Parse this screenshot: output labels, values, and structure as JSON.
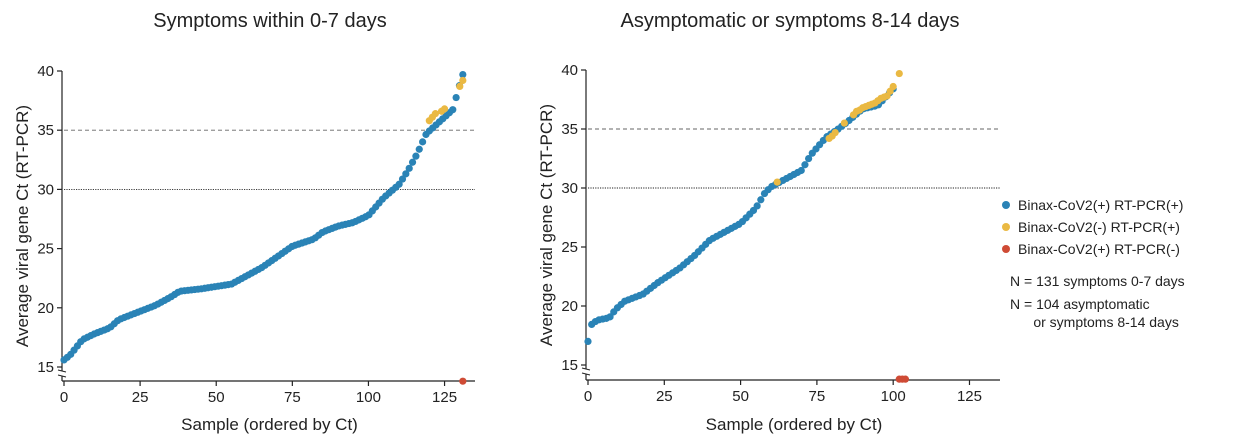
{
  "colors": {
    "pos_pos": "#2a83b6",
    "neg_pos": "#eab943",
    "pos_neg": "#cf4b35",
    "axis": "#222222",
    "ref_dashed": "#666666",
    "ref_dotted": "#222222"
  },
  "legend": {
    "items": [
      {
        "label": "Binax-CoV2(+) RT-PCR(+)",
        "color_key": "pos_pos"
      },
      {
        "label": "Binax-CoV2(-) RT-PCR(+)",
        "color_key": "neg_pos"
      },
      {
        "label": "Binax-CoV2(+) RT-PCR(-)",
        "color_key": "pos_neg"
      }
    ],
    "note1": "N = 131 symptoms 0-7 days",
    "note2": "N = 104 asymptomatic\n      or symptoms 8-14 days"
  },
  "chart_data": [
    {
      "type": "scatter",
      "title": "Symptoms within 0-7 days",
      "xlabel": "Sample (ordered by Ct)",
      "ylabel": "Average viral gene Ct (RT-PCR)",
      "xlim": [
        0,
        135
      ],
      "ylim": [
        15,
        40
      ],
      "xticks": [
        0,
        25,
        50,
        75,
        100,
        125
      ],
      "yticks": [
        15,
        20,
        25,
        30,
        35,
        40
      ],
      "reference_lines": [
        {
          "y": 35,
          "style": "dashed"
        },
        {
          "y": 30,
          "style": "dotted"
        }
      ],
      "grid": false,
      "n": 131,
      "series": [
        {
          "color_key": "pos_pos",
          "curve": [
            [
              0,
              15.6
            ],
            [
              2,
              16.0
            ],
            [
              6,
              17.3
            ],
            [
              10,
              17.8
            ],
            [
              15,
              18.3
            ],
            [
              18,
              19.0
            ],
            [
              25,
              19.7
            ],
            [
              30,
              20.2
            ],
            [
              35,
              20.9
            ],
            [
              38,
              21.4
            ],
            [
              45,
              21.6
            ],
            [
              55,
              22.0
            ],
            [
              60,
              22.7
            ],
            [
              65,
              23.4
            ],
            [
              70,
              24.3
            ],
            [
              75,
              25.2
            ],
            [
              82,
              25.8
            ],
            [
              85,
              26.4
            ],
            [
              90,
              26.9
            ],
            [
              95,
              27.2
            ],
            [
              100,
              27.8
            ],
            [
              105,
              29.3
            ],
            [
              110,
              30.4
            ],
            [
              113,
              31.6
            ],
            [
              116,
              33.0
            ],
            [
              119,
              34.7
            ],
            [
              128,
              36.8
            ],
            [
              129,
              38.0
            ],
            [
              131,
              39.7
            ]
          ],
          "x_range": [
            0,
            131
          ],
          "count": 120
        },
        {
          "color_key": "neg_pos",
          "points": [
            [
              120,
              35.8
            ],
            [
              121,
              36.1
            ],
            [
              122,
              36.4
            ],
            [
              124,
              36.6
            ],
            [
              125,
              36.8
            ],
            [
              130,
              38.7
            ],
            [
              131,
              39.2
            ]
          ]
        },
        {
          "color_key": "pos_neg",
          "points": [
            [
              131,
              13.8
            ]
          ]
        }
      ]
    },
    {
      "type": "scatter",
      "title": "Asymptomatic or symptoms 8-14 days",
      "xlabel": "Sample (ordered by Ct)",
      "ylabel": "Average viral gene Ct (RT-PCR)",
      "xlim": [
        0,
        135
      ],
      "ylim": [
        15,
        40
      ],
      "xticks": [
        0,
        25,
        50,
        75,
        100,
        125
      ],
      "yticks": [
        15,
        20,
        25,
        30,
        35,
        40
      ],
      "reference_lines": [
        {
          "y": 35,
          "style": "dashed"
        },
        {
          "y": 30,
          "style": "dotted"
        }
      ],
      "grid": false,
      "n": 104,
      "series": [
        {
          "color_key": "pos_pos",
          "curve": [
            [
              0,
              17.0
            ],
            [
              1,
              18.4
            ],
            [
              3,
              18.8
            ],
            [
              7,
              19.0
            ],
            [
              9,
              19.7
            ],
            [
              12,
              20.4
            ],
            [
              18,
              21.0
            ],
            [
              23,
              22.0
            ],
            [
              30,
              23.2
            ],
            [
              35,
              24.3
            ],
            [
              40,
              25.6
            ],
            [
              50,
              27.0
            ],
            [
              55,
              28.3
            ],
            [
              58,
              29.6
            ],
            [
              60,
              30.1
            ],
            [
              65,
              30.8
            ],
            [
              70,
              31.5
            ],
            [
              73,
              32.8
            ],
            [
              78,
              34.3
            ],
            [
              82,
              35.0
            ],
            [
              85,
              35.6
            ],
            [
              90,
              36.7
            ],
            [
              95,
              37.0
            ],
            [
              100,
              38.4
            ],
            [
              102,
              39.6
            ]
          ],
          "x_range": [
            0,
            100
          ],
          "count": 84
        },
        {
          "color_key": "neg_pos",
          "points": [
            [
              62,
              30.5
            ],
            [
              79,
              34.2
            ],
            [
              80,
              34.4
            ],
            [
              81,
              34.7
            ],
            [
              84,
              35.5
            ],
            [
              87,
              36.2
            ],
            [
              88,
              36.5
            ],
            [
              89,
              36.6
            ],
            [
              90,
              36.8
            ],
            [
              91,
              36.9
            ],
            [
              92,
              37.0
            ],
            [
              93,
              37.1
            ],
            [
              94,
              37.2
            ],
            [
              95,
              37.4
            ],
            [
              96,
              37.6
            ],
            [
              97,
              37.7
            ],
            [
              98,
              37.8
            ],
            [
              99,
              38.2
            ],
            [
              100,
              38.6
            ],
            [
              102,
              39.7
            ]
          ]
        },
        {
          "color_key": "pos_neg",
          "points": [
            [
              102,
              13.8
            ],
            [
              103,
              13.8
            ],
            [
              104,
              13.8
            ]
          ]
        }
      ]
    }
  ]
}
